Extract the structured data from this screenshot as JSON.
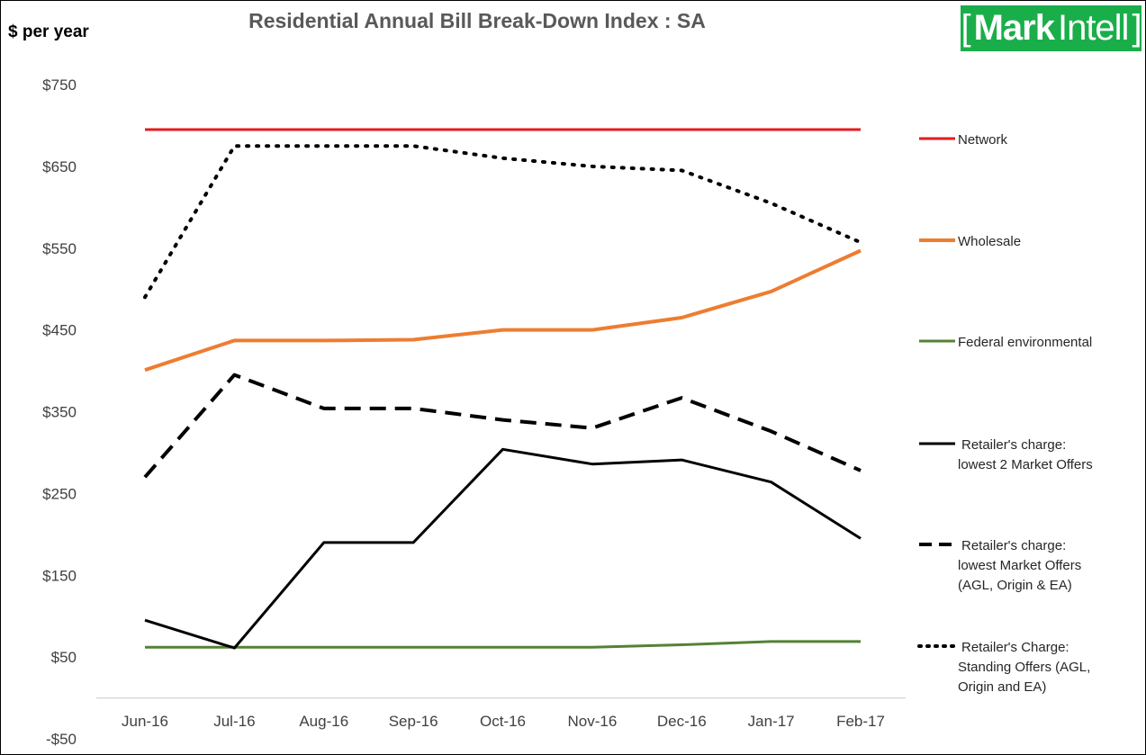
{
  "logo": {
    "word1": "Mark",
    "word2": "Intell",
    "bg_color": "#1aae4a"
  },
  "chart_data": {
    "type": "line",
    "title": "Residential Annual Bill Break-Down Index :  SA",
    "ylabel": "$ per year",
    "xlabel": "",
    "ylim": [
      -50,
      750
    ],
    "yticks": [
      -50,
      50,
      150,
      250,
      350,
      450,
      550,
      650,
      750
    ],
    "ytick_labels": [
      "-$50",
      "$50",
      "$150",
      "$250",
      "$350",
      "$450",
      "$550",
      "$650",
      "$750"
    ],
    "categories": [
      "Jun-16",
      "Jul-16",
      "Aug-16",
      "Sep-16",
      "Oct-16",
      "Nov-16",
      "Dec-16",
      "Jan-17",
      "Feb-17"
    ],
    "grid": false,
    "legend_position": "right",
    "series": [
      {
        "name": "Network",
        "color": "#e31a1c",
        "style": "solid",
        "width": 3,
        "values": [
          695,
          695,
          695,
          695,
          695,
          695,
          695,
          695,
          695
        ]
      },
      {
        "name": "Wholesale",
        "color": "#ed7d31",
        "style": "solid",
        "width": 4,
        "values": [
          401,
          437,
          437,
          438,
          450,
          450,
          465,
          497,
          547
        ]
      },
      {
        "name": "Federal environmental",
        "color": "#548235",
        "style": "solid",
        "width": 3,
        "values": [
          62,
          62,
          62,
          62,
          62,
          62,
          65,
          69,
          69
        ]
      },
      {
        "name_lines": [
          "Retailer's charge:",
          "lowest 2 Market Offers"
        ],
        "color": "#000000",
        "style": "solid",
        "width": 3,
        "values": [
          95,
          61,
          190,
          190,
          304,
          286,
          291,
          264,
          195
        ]
      },
      {
        "name_lines": [
          "Retailer's charge:",
          "lowest Market Offers",
          "(AGL, Origin & EA)"
        ],
        "color": "#000000",
        "style": "dashed",
        "width": 4,
        "values": [
          270,
          395,
          354,
          354,
          340,
          330,
          367,
          326,
          278
        ]
      },
      {
        "name_lines": [
          "Retailer's Charge:",
          "Standing Offers (AGL,",
          "Origin and EA)"
        ],
        "color": "#000000",
        "style": "dotted",
        "width": 4,
        "values": [
          490,
          675,
          675,
          675,
          660,
          650,
          645,
          605,
          557
        ]
      }
    ]
  }
}
